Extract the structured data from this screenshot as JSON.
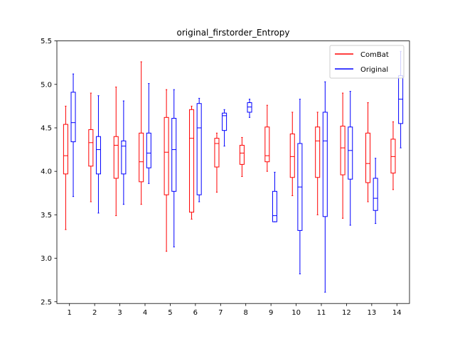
{
  "chart_data": {
    "type": "box",
    "title": "original_firstorder_Entropy",
    "xlabel": "",
    "ylabel": "",
    "ylim": [
      2.48,
      5.5
    ],
    "y_ticks": [
      "2.5",
      "3.0",
      "3.5",
      "4.0",
      "4.5",
      "5.0",
      "5.5"
    ],
    "y_tick_values": [
      2.5,
      3.0,
      3.5,
      4.0,
      4.5,
      5.0,
      5.5
    ],
    "categories": [
      "1",
      "2",
      "3",
      "4",
      "5",
      "6",
      "7",
      "8",
      "9",
      "10",
      "11",
      "12",
      "13",
      "14"
    ],
    "grid": false,
    "legend_position": "top-right",
    "series": [
      {
        "name": "ComBat",
        "color": "#ff0000",
        "boxes": [
          {
            "min": 3.33,
            "q1": 3.97,
            "median": 4.18,
            "q3": 4.54,
            "max": 4.75
          },
          {
            "min": 3.65,
            "q1": 4.06,
            "median": 4.33,
            "q3": 4.48,
            "max": 4.9
          },
          {
            "min": 3.49,
            "q1": 3.92,
            "median": 4.3,
            "q3": 4.4,
            "max": 4.97
          },
          {
            "min": 3.62,
            "q1": 3.88,
            "median": 4.11,
            "q3": 4.44,
            "max": 5.26
          },
          {
            "min": 3.08,
            "q1": 3.73,
            "median": 4.22,
            "q3": 4.62,
            "max": 4.94
          },
          {
            "min": 3.45,
            "q1": 3.53,
            "median": 4.38,
            "q3": 4.71,
            "max": 4.75
          },
          {
            "min": 3.76,
            "q1": 4.05,
            "median": 4.32,
            "q3": 4.38,
            "max": 4.44
          },
          {
            "min": 3.94,
            "q1": 4.08,
            "median": 4.21,
            "q3": 4.3,
            "max": 4.39
          },
          {
            "min": 4.0,
            "q1": 4.11,
            "median": 4.18,
            "q3": 4.51,
            "max": 4.76
          },
          {
            "min": 3.72,
            "q1": 3.93,
            "median": 4.17,
            "q3": 4.43,
            "max": 4.68
          },
          {
            "min": 3.5,
            "q1": 3.93,
            "median": 4.35,
            "q3": 4.51,
            "max": 4.68
          },
          {
            "min": 3.46,
            "q1": 3.96,
            "median": 4.27,
            "q3": 4.52,
            "max": 4.9
          },
          {
            "min": 3.65,
            "q1": 3.87,
            "median": 4.09,
            "q3": 4.44,
            "max": 4.79
          },
          {
            "min": 3.79,
            "q1": 3.98,
            "median": 4.17,
            "q3": 4.37,
            "max": 4.57
          }
        ]
      },
      {
        "name": "Original",
        "color": "#0000ff",
        "boxes": [
          {
            "min": 3.71,
            "q1": 4.34,
            "median": 4.56,
            "q3": 4.91,
            "max": 5.12
          },
          {
            "min": 3.52,
            "q1": 3.97,
            "median": 4.25,
            "q3": 4.4,
            "max": 4.87
          },
          {
            "min": 3.62,
            "q1": 3.97,
            "median": 4.29,
            "q3": 4.35,
            "max": 4.81
          },
          {
            "min": 3.86,
            "q1": 4.04,
            "median": 4.21,
            "q3": 4.44,
            "max": 5.01
          },
          {
            "min": 3.13,
            "q1": 3.77,
            "median": 4.25,
            "q3": 4.61,
            "max": 4.94
          },
          {
            "min": 3.65,
            "q1": 3.73,
            "median": 4.5,
            "q3": 4.78,
            "max": 4.84
          },
          {
            "min": 4.29,
            "q1": 4.47,
            "median": 4.64,
            "q3": 4.67,
            "max": 4.71
          },
          {
            "min": 4.62,
            "q1": 4.68,
            "median": 4.74,
            "q3": 4.79,
            "max": 4.83
          },
          {
            "min": 3.42,
            "q1": 3.42,
            "median": 3.49,
            "q3": 3.77,
            "max": 3.99
          },
          {
            "min": 2.82,
            "q1": 3.32,
            "median": 3.82,
            "q3": 4.32,
            "max": 4.83
          },
          {
            "min": 2.61,
            "q1": 3.48,
            "median": 4.35,
            "q3": 4.68,
            "max": 5.03
          },
          {
            "min": 3.38,
            "q1": 3.91,
            "median": 4.24,
            "q3": 4.51,
            "max": 4.92
          },
          {
            "min": 3.4,
            "q1": 3.55,
            "median": 3.69,
            "q3": 3.92,
            "max": 4.15
          },
          {
            "min": 4.27,
            "q1": 4.55,
            "median": 4.83,
            "q3": 5.1,
            "max": 5.38
          }
        ]
      }
    ]
  }
}
